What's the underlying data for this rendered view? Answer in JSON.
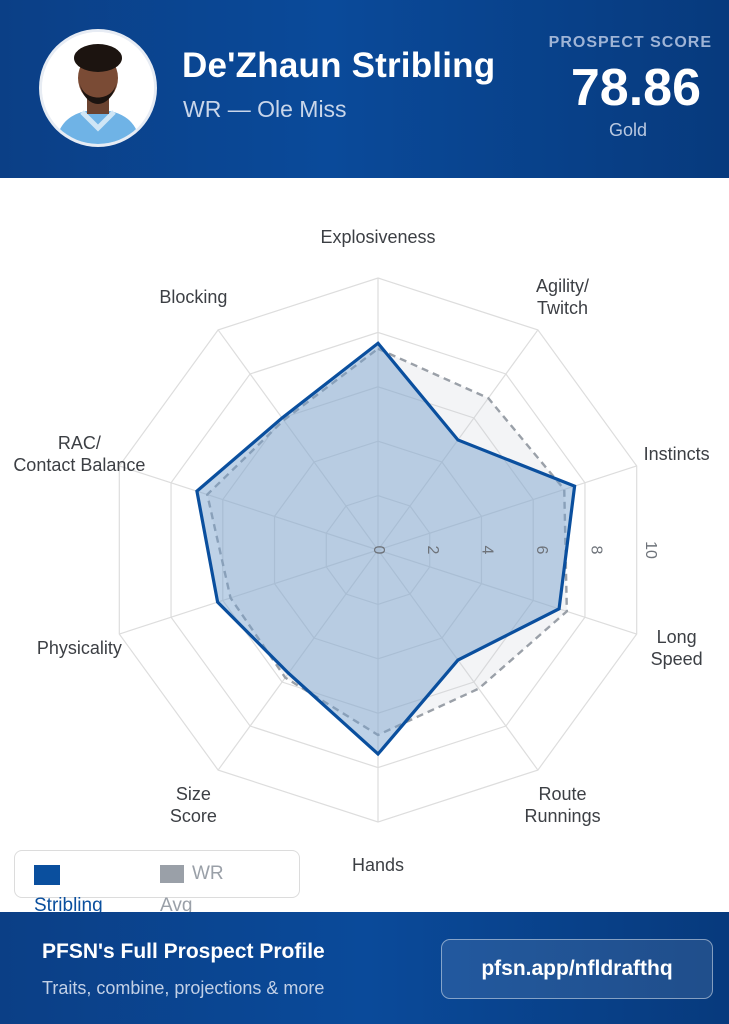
{
  "header": {
    "player_name": "De'Zhaun Stribling",
    "player_position_school": "WR — Ole Miss",
    "score_label": "PROSPECT SCORE",
    "score_value": "78.86",
    "tier": "Gold"
  },
  "colors": {
    "header_bg": "#0b4390",
    "player_series": "#0a4f9e",
    "player_fill": "#a9c2de",
    "avg_series": "#9aa0a8",
    "grid": "#dddddd"
  },
  "chart_data": {
    "type": "radar",
    "axes": [
      "Explosiveness",
      "Agility/ Twitch",
      "Instincts",
      "Long Speed",
      "Route Runnings",
      "Hands",
      "Size Score",
      "Physicality",
      "RAC/ Contact Balance",
      "Blocking"
    ],
    "axis_label_lines": [
      [
        "Explosiveness"
      ],
      [
        "Agility/",
        "Twitch"
      ],
      [
        "Instincts"
      ],
      [
        "Long",
        "Speed"
      ],
      [
        "Route",
        "Runnings"
      ],
      [
        "Hands"
      ],
      [
        "Size",
        "Score"
      ],
      [
        "Physicality"
      ],
      [
        "RAC/",
        "Contact Balance"
      ],
      [
        "Blocking"
      ]
    ],
    "rlim": [
      0,
      10
    ],
    "ticks": [
      0,
      2,
      4,
      6,
      8,
      10
    ],
    "grid": true,
    "series": [
      {
        "name": "Stribling",
        "values": [
          7.6,
          5.0,
          7.6,
          7.0,
          5.0,
          7.5,
          5.6,
          6.2,
          7.0,
          6.0
        ]
      },
      {
        "name": "WR Avg",
        "values": [
          7.4,
          6.9,
          7.2,
          7.3,
          6.3,
          6.8,
          5.8,
          5.7,
          6.6,
          5.9
        ]
      }
    ],
    "legend": {
      "position": "bottom-left",
      "items": [
        {
          "label": "Stribling"
        },
        {
          "label": "WR",
          "label_suffix": "Avg"
        }
      ]
    }
  },
  "footer": {
    "title": "PFSN's Full Prospect Profile",
    "subtitle": "Traits, combine, projections & more",
    "link": "pfsn.app/nfldrafthq"
  }
}
